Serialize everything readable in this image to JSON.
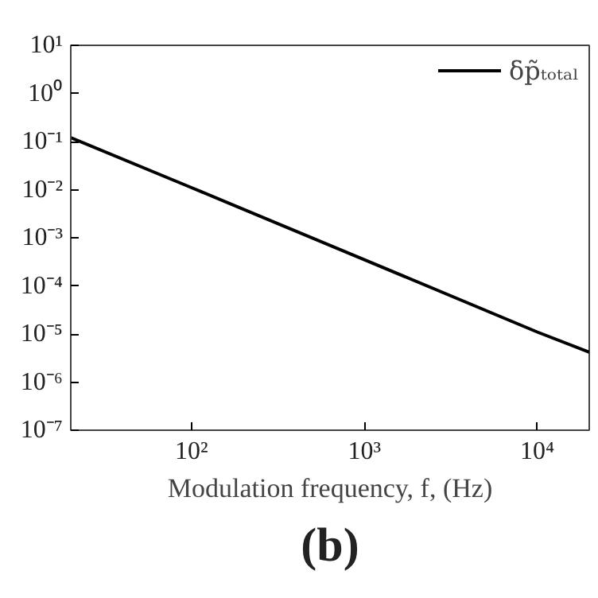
{
  "chart_data": {
    "type": "line",
    "xlabel": "Modulation frequency, f, (Hz)",
    "log": "xy",
    "grid": false,
    "legend": "top right",
    "x": [
      20,
      100,
      1000,
      10000,
      20000
    ],
    "series": [
      {
        "name": "δp̃ₜₒₜₐₗ",
        "color": "#000000",
        "values": [
          0.12,
          0.011,
          0.00035,
          1.1e-05,
          4.2e-06
        ]
      }
    ],
    "xlim": [
      20,
      20000
    ],
    "ylim": [
      1e-07,
      10
    ],
    "xticks": [
      {
        "value": 100,
        "label": "10²"
      },
      {
        "value": 1000,
        "label": "10³"
      },
      {
        "value": 10000,
        "label": "10⁴"
      }
    ],
    "yticks": [
      {
        "value": 1e-07,
        "label": "10⁻⁷"
      },
      {
        "value": 1e-06,
        "label": "10⁻⁶"
      },
      {
        "value": 1e-05,
        "label": "10⁻⁵"
      },
      {
        "value": 0.0001,
        "label": "10⁻⁴"
      },
      {
        "value": 0.001,
        "label": "10⁻³"
      },
      {
        "value": 0.01,
        "label": "10⁻²"
      },
      {
        "value": 0.1,
        "label": "10⁻¹"
      },
      {
        "value": 1,
        "label": "10⁰"
      },
      {
        "value": 10,
        "label": "10¹"
      }
    ],
    "annotations": [
      "(b)"
    ]
  }
}
